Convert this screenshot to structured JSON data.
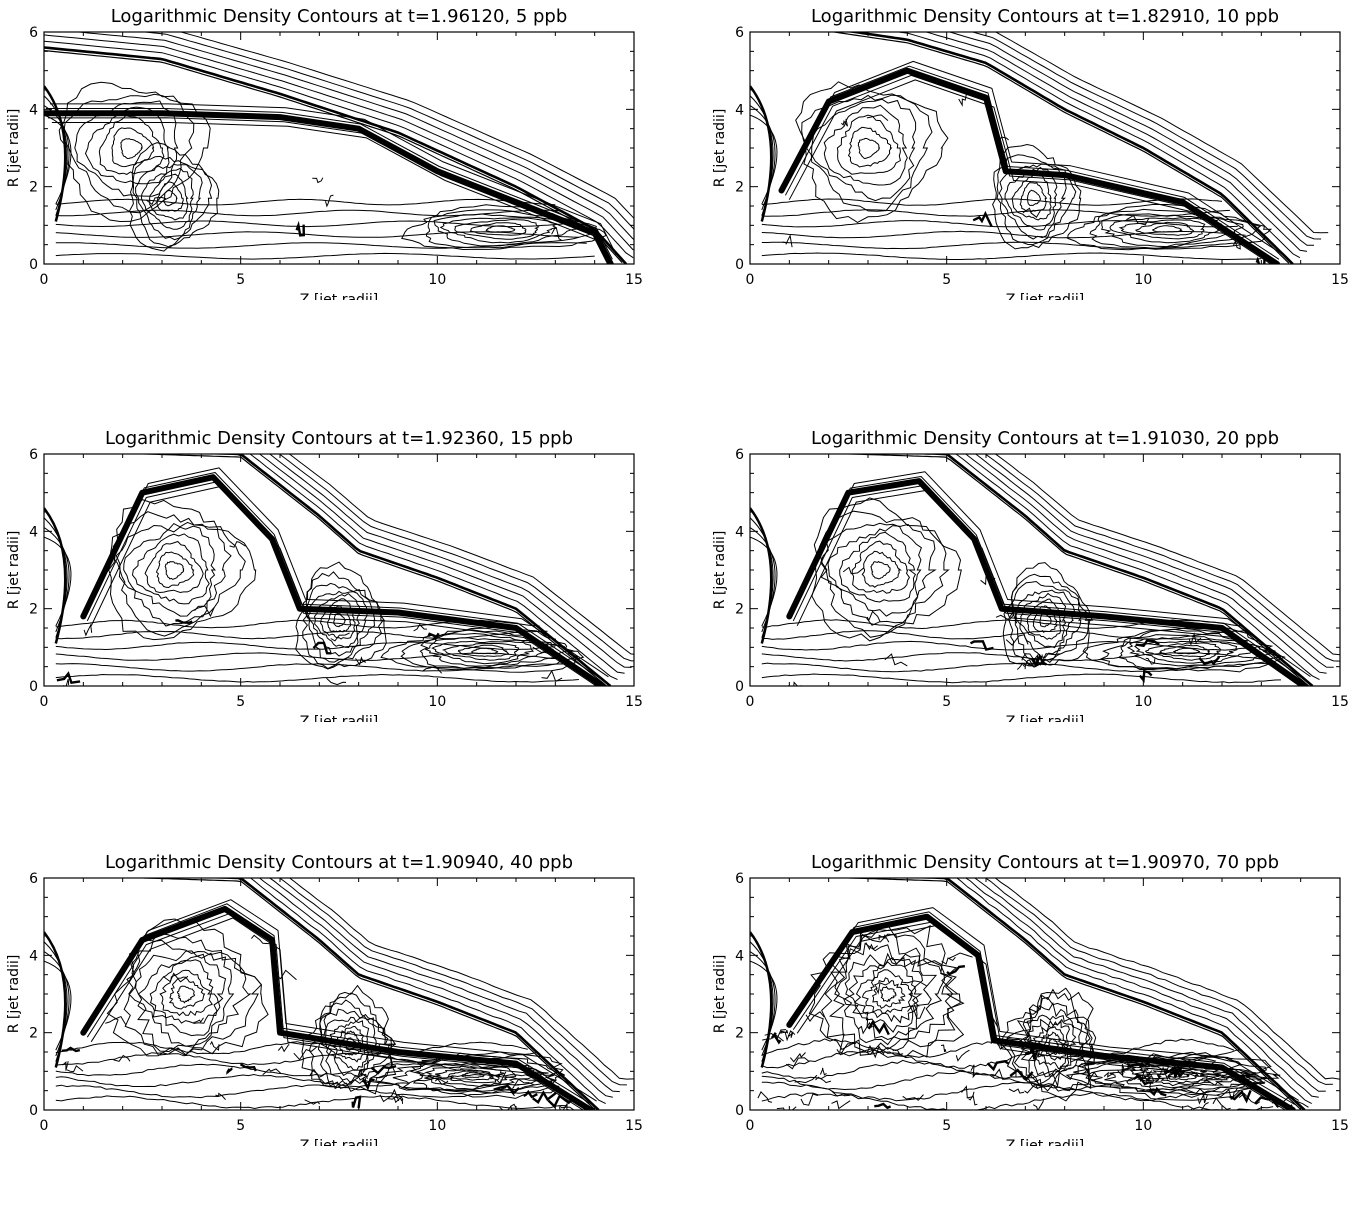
{
  "chart_data": [
    {
      "type": "contour",
      "title": "Logarithmic Density Contours at t=1.96120, 5 ppb",
      "xlabel": "Z [jet radii]",
      "ylabel": "R [jet radii]",
      "xlim": [
        0,
        15
      ],
      "ylim": [
        0,
        6
      ],
      "xticks": [
        "0",
        "5",
        "10",
        "15"
      ],
      "yticks": [
        "0",
        "2",
        "4",
        "6"
      ],
      "time": 1.9612,
      "resolution_ppb": 5,
      "bow_shock_head_z": 14.8,
      "cocoon_edge": [
        [
          0,
          5.6
        ],
        [
          3,
          5.3
        ],
        [
          6,
          4.4
        ],
        [
          9,
          3.4
        ],
        [
          12,
          2.0
        ],
        [
          14,
          0.9
        ],
        [
          14.8,
          0
        ]
      ],
      "contact_surface": [
        [
          0,
          3.9
        ],
        [
          3,
          3.9
        ],
        [
          6,
          3.8
        ],
        [
          8,
          3.5
        ],
        [
          10,
          2.4
        ],
        [
          12,
          1.6
        ],
        [
          14,
          0.8
        ],
        [
          14.4,
          0
        ]
      ]
    },
    {
      "type": "contour",
      "title": "Logarithmic Density Contours at t=1.82910, 10 ppb",
      "xlabel": "Z [jet radii]",
      "ylabel": "R [jet radii]",
      "xlim": [
        0,
        15
      ],
      "ylim": [
        0,
        6
      ],
      "xticks": [
        "0",
        "5",
        "10",
        "15"
      ],
      "yticks": [
        "0",
        "2",
        "4",
        "6"
      ],
      "time": 1.8291,
      "resolution_ppb": 10,
      "bow_shock_head_z": 13.8,
      "cocoon_edge": [
        [
          0,
          6.1
        ],
        [
          2,
          6.1
        ],
        [
          4,
          5.8
        ],
        [
          6,
          5.2
        ],
        [
          8,
          4.0
        ],
        [
          10,
          3.0
        ],
        [
          12,
          1.8
        ],
        [
          13.8,
          0
        ]
      ],
      "contact_surface": [
        [
          0.8,
          1.9
        ],
        [
          2,
          4.2
        ],
        [
          4,
          5.0
        ],
        [
          6,
          4.3
        ],
        [
          6.5,
          2.4
        ],
        [
          8,
          2.3
        ],
        [
          11,
          1.6
        ],
        [
          13.4,
          0
        ]
      ]
    },
    {
      "type": "contour",
      "title": "Logarithmic Density Contours at t=1.92360, 15 ppb",
      "xlabel": "Z [jet radii]",
      "ylabel": "R [jet radii]",
      "xlim": [
        0,
        15
      ],
      "ylim": [
        0,
        6
      ],
      "xticks": [
        "0",
        "5",
        "10",
        "15"
      ],
      "yticks": [
        "0",
        "2",
        "4",
        "6"
      ],
      "time": 1.9236,
      "resolution_ppb": 15,
      "bow_shock_head_z": 14.4,
      "cocoon_edge": [
        [
          0,
          6.1
        ],
        [
          2,
          6.1
        ],
        [
          5,
          6.0
        ],
        [
          7,
          4.4
        ],
        [
          8,
          3.5
        ],
        [
          10,
          2.8
        ],
        [
          12,
          2.0
        ],
        [
          14.4,
          0
        ]
      ],
      "contact_surface": [
        [
          1,
          1.8
        ],
        [
          2.5,
          5.0
        ],
        [
          4.3,
          5.4
        ],
        [
          5.8,
          3.8
        ],
        [
          6.5,
          2.0
        ],
        [
          9,
          1.9
        ],
        [
          12,
          1.5
        ],
        [
          14.2,
          0
        ]
      ]
    },
    {
      "type": "contour",
      "title": "Logarithmic Density Contours at t=1.91030, 20 ppb",
      "xlabel": "Z [jet radii]",
      "ylabel": "R [jet radii]",
      "xlim": [
        0,
        15
      ],
      "ylim": [
        0,
        6
      ],
      "xticks": [
        "0",
        "5",
        "10",
        "15"
      ],
      "yticks": [
        "0",
        "2",
        "4",
        "6"
      ],
      "time": 1.9103,
      "resolution_ppb": 20,
      "bow_shock_head_z": 14.3,
      "cocoon_edge": [
        [
          0,
          6.1
        ],
        [
          2,
          6.1
        ],
        [
          5,
          6.0
        ],
        [
          7,
          4.4
        ],
        [
          8,
          3.5
        ],
        [
          10,
          2.8
        ],
        [
          12,
          2.0
        ],
        [
          14.3,
          0
        ]
      ],
      "contact_surface": [
        [
          1,
          1.8
        ],
        [
          2.5,
          5.0
        ],
        [
          4.3,
          5.3
        ],
        [
          5.7,
          3.8
        ],
        [
          6.4,
          2.0
        ],
        [
          9,
          1.8
        ],
        [
          12,
          1.5
        ],
        [
          14.1,
          0
        ]
      ]
    },
    {
      "type": "contour",
      "title": "Logarithmic Density Contours at t=1.90940, 40 ppb",
      "xlabel": "Z [jet radii]",
      "ylabel": "R [jet radii]",
      "xlim": [
        0,
        15
      ],
      "ylim": [
        0,
        6
      ],
      "xticks": [
        "0",
        "5",
        "10",
        "15"
      ],
      "yticks": [
        "0",
        "2",
        "4",
        "6"
      ],
      "time": 1.9094,
      "resolution_ppb": 40,
      "bow_shock_head_z": 14.1,
      "cocoon_edge": [
        [
          0,
          6.1
        ],
        [
          2,
          6.1
        ],
        [
          5,
          6.0
        ],
        [
          7,
          4.4
        ],
        [
          8,
          3.5
        ],
        [
          10,
          2.8
        ],
        [
          12,
          2.0
        ],
        [
          14.1,
          0
        ]
      ],
      "contact_surface": [
        [
          1,
          2.0
        ],
        [
          2.5,
          4.4
        ],
        [
          4.6,
          5.2
        ],
        [
          5.8,
          4.4
        ],
        [
          6,
          2.0
        ],
        [
          9,
          1.5
        ],
        [
          12,
          1.2
        ],
        [
          13.9,
          0
        ]
      ]
    },
    {
      "type": "contour",
      "title": "Logarithmic Density Contours at t=1.90970, 70 ppb",
      "xlabel": "Z [jet radii]",
      "ylabel": "R [jet radii]",
      "xlim": [
        0,
        15
      ],
      "ylim": [
        0,
        6
      ],
      "xticks": [
        "0",
        "5",
        "10",
        "15"
      ],
      "yticks": [
        "0",
        "2",
        "4",
        "6"
      ],
      "time": 1.9097,
      "resolution_ppb": 70,
      "bow_shock_head_z": 14.1,
      "cocoon_edge": [
        [
          0,
          6.1
        ],
        [
          2,
          6.1
        ],
        [
          5,
          6.0
        ],
        [
          7,
          4.4
        ],
        [
          8,
          3.5
        ],
        [
          10,
          2.8
        ],
        [
          12,
          2.0
        ],
        [
          14.1,
          0
        ]
      ],
      "contact_surface": [
        [
          1,
          2.2
        ],
        [
          2.6,
          4.6
        ],
        [
          4.5,
          5.0
        ],
        [
          5.8,
          4.0
        ],
        [
          6.2,
          1.8
        ],
        [
          9,
          1.4
        ],
        [
          12,
          1.1
        ],
        [
          13.8,
          0
        ]
      ]
    }
  ]
}
